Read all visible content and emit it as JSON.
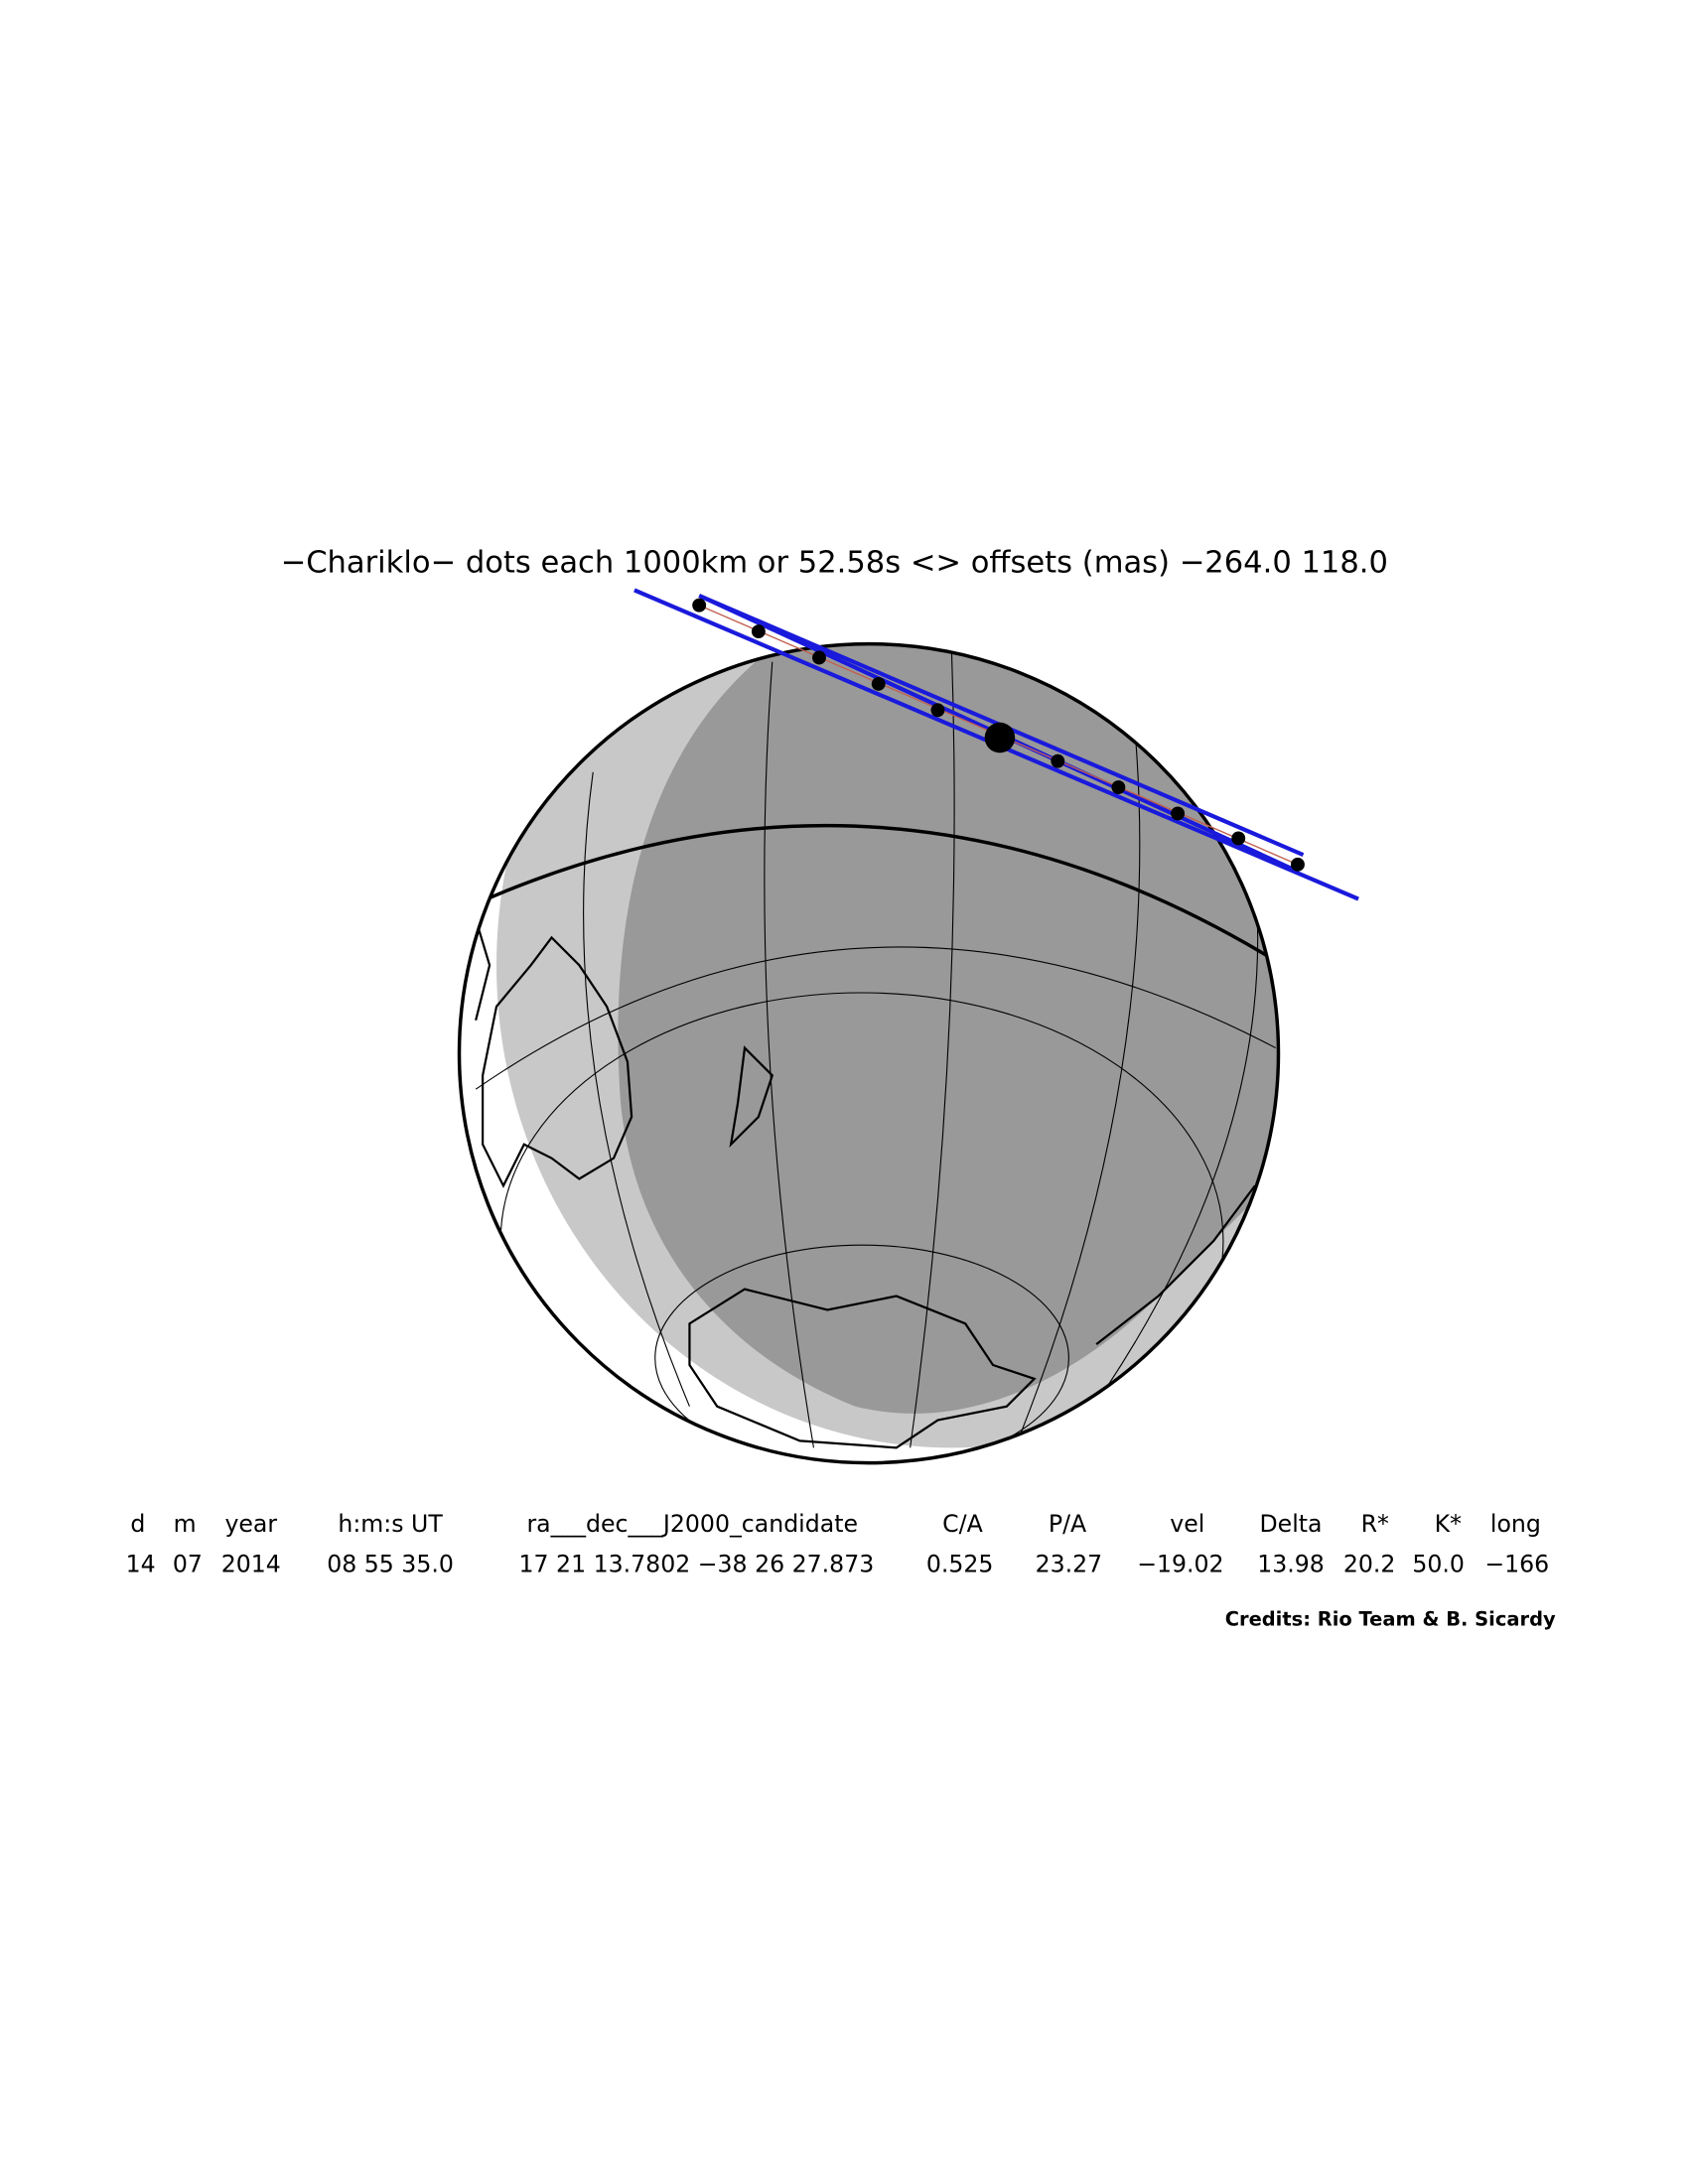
{
  "header": {
    "title": "−Chariklo− dots each 1000km or 52.58s <> offsets (mas) −264.0  118.0"
  },
  "table": {
    "columns": [
      "d",
      "m",
      "year",
      "h:m:s UT",
      "ra___dec___J2000_candidate",
      "C/A",
      "P/A",
      "vel",
      "Delta",
      "R*",
      "K*",
      "long"
    ],
    "values": [
      "14",
      "07",
      "2014",
      "08 55 35.0",
      "17 21 13.7802 −38 26 27.873",
      "0.525",
      "23.27",
      "−19.02",
      "13.98",
      "20.2",
      "50.0",
      "−166"
    ]
  },
  "credits": "Credits: Rio Team & B. Sicardy"
}
